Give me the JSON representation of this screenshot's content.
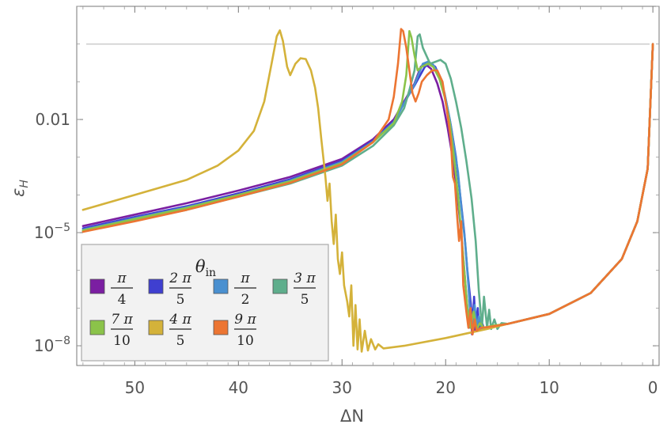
{
  "chart_data": {
    "type": "line",
    "xlabel": "ΔN",
    "ylabel": "ε_H",
    "ylabel_parts": {
      "main": "ε",
      "sub": "H"
    },
    "x_axis": {
      "range": [
        55.6,
        -0.6
      ],
      "reversed": true,
      "ticks": [
        50,
        40,
        30,
        20,
        10,
        0
      ],
      "tick_labels": [
        "50",
        "40",
        "30",
        "20",
        "10",
        "0"
      ]
    },
    "y_axis": {
      "scale": "log",
      "range": [
        3e-09,
        10.0
      ],
      "ticks": [
        0.01,
        1e-05,
        1e-08
      ],
      "tick_labels": [
        {
          "base": "0.01",
          "exp": ""
        },
        {
          "base": "10",
          "exp": "−5"
        },
        {
          "base": "10",
          "exp": "−8"
        }
      ]
    },
    "reference_line": {
      "y": 1.0,
      "color": "#c8c8c8"
    },
    "legend": {
      "title": {
        "main": "θ",
        "sub": "in"
      },
      "placement": "bottom-left",
      "entries": [
        {
          "num": "π",
          "den": "4"
        },
        {
          "num": "2 π",
          "den": "5"
        },
        {
          "num": "π",
          "den": "2"
        },
        {
          "num": "3 π",
          "den": "5"
        },
        {
          "num": "7 π",
          "den": "10"
        },
        {
          "num": "4 π",
          "den": "5"
        },
        {
          "num": "9 π",
          "den": "10"
        }
      ]
    },
    "series": [
      {
        "color": "#7b1fa2",
        "points": [
          [
            55,
            1.5e-05
          ],
          [
            50,
            3e-05
          ],
          [
            45,
            6e-05
          ],
          [
            40,
            0.00013
          ],
          [
            35,
            0.0003
          ],
          [
            30,
            0.0009
          ],
          [
            27,
            0.003
          ],
          [
            25,
            0.01
          ],
          [
            24,
            0.03
          ],
          [
            23,
            0.09
          ],
          [
            22.4,
            0.25
          ],
          [
            22,
            0.3
          ],
          [
            21.4,
            0.22
          ],
          [
            20.8,
            0.09
          ],
          [
            20.3,
            0.03
          ],
          [
            19.8,
            0.006
          ],
          [
            19.3,
            0.0009
          ],
          [
            18.9,
            0.00012
          ],
          [
            18.5,
            1e-05
          ],
          [
            18.2,
            1e-06
          ],
          [
            17.9,
            1e-07
          ],
          [
            17.75,
            3e-08
          ],
          [
            17.6,
            1.5e-07
          ],
          [
            17.45,
            2e-08
          ],
          [
            17.3,
            8e-08
          ],
          [
            17.15,
            2.5e-08
          ],
          [
            17.0,
            4e-08
          ],
          [
            16.6,
            2.8e-08
          ],
          [
            16,
            3.1e-08
          ],
          [
            14,
            3.8e-08
          ],
          [
            10,
            7e-08
          ],
          [
            6,
            2.5e-07
          ],
          [
            3,
            2e-06
          ],
          [
            1.5,
            2e-05
          ],
          [
            0.5,
            0.0005
          ],
          [
            0,
            1
          ]
        ]
      },
      {
        "color": "#3f3fd0",
        "points": [
          [
            55,
            1.3e-05
          ],
          [
            50,
            2.6e-05
          ],
          [
            45,
            5e-05
          ],
          [
            40,
            0.00011
          ],
          [
            35,
            0.00026
          ],
          [
            30,
            0.0008
          ],
          [
            27,
            0.0028
          ],
          [
            25,
            0.009
          ],
          [
            24,
            0.028
          ],
          [
            23,
            0.08
          ],
          [
            22,
            0.25
          ],
          [
            21.5,
            0.31
          ],
          [
            21,
            0.25
          ],
          [
            20.5,
            0.12
          ],
          [
            20,
            0.035
          ],
          [
            19.5,
            0.007
          ],
          [
            19,
            0.001
          ],
          [
            18.6,
            0.0001
          ],
          [
            18.2,
            1e-05
          ],
          [
            17.9,
            1e-06
          ],
          [
            17.6,
            1.5e-07
          ],
          [
            17.4,
            4e-08
          ],
          [
            17.25,
            2e-07
          ],
          [
            17.1,
            3e-08
          ],
          [
            16.9,
            1e-07
          ],
          [
            16.75,
            2.7e-08
          ],
          [
            16.6,
            5e-08
          ],
          [
            16.3,
            2.9e-08
          ],
          [
            16,
            3.1e-08
          ],
          [
            14,
            3.8e-08
          ],
          [
            10,
            7e-08
          ],
          [
            6,
            2.5e-07
          ],
          [
            3,
            2e-06
          ],
          [
            1.5,
            2e-05
          ],
          [
            0.5,
            0.0005
          ],
          [
            0,
            1
          ]
        ]
      },
      {
        "color": "#4a90d0",
        "points": [
          [
            55,
            1.2e-05
          ],
          [
            50,
            2.4e-05
          ],
          [
            45,
            4.7e-05
          ],
          [
            40,
            0.0001
          ],
          [
            35,
            0.00024
          ],
          [
            30,
            0.00075
          ],
          [
            27,
            0.0026
          ],
          [
            25,
            0.0085
          ],
          [
            24,
            0.027
          ],
          [
            23,
            0.085
          ],
          [
            22.2,
            0.3
          ],
          [
            21.7,
            0.34
          ],
          [
            21.2,
            0.28
          ],
          [
            20.6,
            0.14
          ],
          [
            20.1,
            0.05
          ],
          [
            19.6,
            0.01
          ],
          [
            19.2,
            0.002
          ],
          [
            18.8,
            0.0004
          ],
          [
            18.5,
            5e-05
          ],
          [
            18.1,
            5e-06
          ],
          [
            17.8,
            4e-07
          ],
          [
            17.6,
            5e-08
          ],
          [
            17.4,
            3.5e-08
          ],
          [
            17.2,
            1.2e-07
          ],
          [
            17.0,
            3e-08
          ],
          [
            16.8,
            6e-08
          ],
          [
            16.5,
            2.8e-08
          ],
          [
            16.1,
            3.1e-08
          ],
          [
            14,
            3.8e-08
          ],
          [
            10,
            7e-08
          ],
          [
            6,
            2.5e-07
          ],
          [
            3,
            2e-06
          ],
          [
            1.5,
            2e-05
          ],
          [
            0.5,
            0.0005
          ],
          [
            0,
            1
          ]
        ]
      },
      {
        "color": "#5fae8c",
        "points": [
          [
            55,
            1.1e-05
          ],
          [
            50,
            2.1e-05
          ],
          [
            45,
            4e-05
          ],
          [
            40,
            9e-05
          ],
          [
            35,
            0.0002
          ],
          [
            30,
            0.0006
          ],
          [
            27,
            0.002
          ],
          [
            25,
            0.007
          ],
          [
            24,
            0.02
          ],
          [
            23.5,
            0.06
          ],
          [
            23,
            0.2
          ],
          [
            22.7,
            1.6
          ],
          [
            22.5,
            1.8
          ],
          [
            22.2,
            0.8
          ],
          [
            21.5,
            0.3
          ],
          [
            20.5,
            0.38
          ],
          [
            20,
            0.3
          ],
          [
            19.5,
            0.12
          ],
          [
            19,
            0.03
          ],
          [
            18.5,
            0.006
          ],
          [
            18,
            0.0008
          ],
          [
            17.5,
            8e-05
          ],
          [
            17.1,
            6e-06
          ],
          [
            16.8,
            3e-07
          ],
          [
            16.5,
            3e-08
          ],
          [
            16.3,
            2e-07
          ],
          [
            16.0,
            3e-08
          ],
          [
            15.8,
            9e-08
          ],
          [
            15.6,
            2.8e-08
          ],
          [
            15.3,
            5e-08
          ],
          [
            15.0,
            2.8e-08
          ],
          [
            14.6,
            4e-08
          ],
          [
            14,
            3.8e-08
          ],
          [
            10,
            7e-08
          ],
          [
            6,
            2.5e-07
          ],
          [
            3,
            2e-06
          ],
          [
            1.5,
            2e-05
          ],
          [
            0.5,
            0.0005
          ],
          [
            0,
            1
          ]
        ]
      },
      {
        "color": "#8bc34a",
        "points": [
          [
            55,
            1.15e-05
          ],
          [
            50,
            2.3e-05
          ],
          [
            45,
            4.5e-05
          ],
          [
            40,
            0.0001
          ],
          [
            35,
            0.00023
          ],
          [
            30,
            0.0007
          ],
          [
            27,
            0.0025
          ],
          [
            25,
            0.008
          ],
          [
            24.2,
            0.03
          ],
          [
            23.8,
            0.15
          ],
          [
            23.5,
            2.2
          ],
          [
            23.3,
            1.5
          ],
          [
            23,
            0.5
          ],
          [
            22.7,
            0.2
          ],
          [
            22.3,
            0.25
          ],
          [
            21.7,
            0.3
          ],
          [
            21.2,
            0.25
          ],
          [
            20.6,
            0.12
          ],
          [
            20.1,
            0.04
          ],
          [
            19.6,
            0.008
          ],
          [
            19.2,
            0.001
          ],
          [
            18.8,
            0.0001
          ],
          [
            18.5,
            1e-05
          ],
          [
            18.2,
            1e-06
          ],
          [
            17.9,
            1e-07
          ],
          [
            17.6,
            3e-08
          ],
          [
            17.3,
            8e-08
          ],
          [
            17.0,
            2.7e-08
          ],
          [
            16.7,
            4e-08
          ],
          [
            16.3,
            3e-08
          ],
          [
            15.5,
            3.4e-08
          ],
          [
            14,
            3.8e-08
          ],
          [
            10,
            7e-08
          ],
          [
            6,
            2.5e-07
          ],
          [
            3,
            2e-06
          ],
          [
            1.5,
            2e-05
          ],
          [
            0.5,
            0.0005
          ],
          [
            0,
            1
          ]
        ]
      },
      {
        "color": "#d4b23a",
        "points": [
          [
            55,
            4e-05
          ],
          [
            50,
            0.0001
          ],
          [
            45,
            0.00025
          ],
          [
            42,
            0.0006
          ],
          [
            40,
            0.0015
          ],
          [
            38.5,
            0.005
          ],
          [
            37.5,
            0.03
          ],
          [
            36.8,
            0.3
          ],
          [
            36.3,
            1.6
          ],
          [
            36,
            2.3
          ],
          [
            35.7,
            1.2
          ],
          [
            35.3,
            0.25
          ],
          [
            35,
            0.15
          ],
          [
            34.5,
            0.3
          ],
          [
            34,
            0.42
          ],
          [
            33.5,
            0.4
          ],
          [
            33,
            0.2
          ],
          [
            32.6,
            0.07
          ],
          [
            32.3,
            0.02
          ],
          [
            32.0,
            0.003
          ],
          [
            31.6,
            0.0003
          ],
          [
            31.4,
            7e-05
          ],
          [
            31.2,
            0.0002
          ],
          [
            31.0,
            2e-05
          ],
          [
            30.8,
            5e-06
          ],
          [
            30.6,
            3e-05
          ],
          [
            30.4,
            2e-06
          ],
          [
            30.2,
            8e-07
          ],
          [
            30.0,
            3e-06
          ],
          [
            29.8,
            4e-07
          ],
          [
            29.5,
            1.5e-07
          ],
          [
            29.3,
            6e-08
          ],
          [
            29.1,
            4e-07
          ],
          [
            28.9,
            1e-08
          ],
          [
            28.7,
            1.2e-07
          ],
          [
            28.5,
            8e-09
          ],
          [
            28.3,
            5e-08
          ],
          [
            28.1,
            7e-09
          ],
          [
            27.8,
            2.5e-08
          ],
          [
            27.5,
            7.5e-09
          ],
          [
            27.2,
            1.5e-08
          ],
          [
            26.8,
            8e-09
          ],
          [
            26.5,
            1.1e-08
          ],
          [
            26,
            8.5e-09
          ],
          [
            24,
            1e-08
          ],
          [
            20,
            1.6e-08
          ],
          [
            16,
            2.8e-08
          ],
          [
            14,
            3.8e-08
          ],
          [
            10,
            7e-08
          ],
          [
            6,
            2.5e-07
          ],
          [
            3,
            2e-06
          ],
          [
            1.5,
            2e-05
          ],
          [
            0.5,
            0.0005
          ],
          [
            0,
            1
          ]
        ]
      },
      {
        "color": "#ec7532",
        "points": [
          [
            55,
            1.05e-05
          ],
          [
            50,
            2e-05
          ],
          [
            45,
            4e-05
          ],
          [
            40,
            9e-05
          ],
          [
            35,
            0.00021
          ],
          [
            30,
            0.00065
          ],
          [
            27,
            0.0025
          ],
          [
            25.5,
            0.01
          ],
          [
            25,
            0.04
          ],
          [
            24.6,
            0.3
          ],
          [
            24.3,
            2.5
          ],
          [
            24.1,
            2.2
          ],
          [
            23.8,
            0.8
          ],
          [
            23.5,
            0.2
          ],
          [
            23.2,
            0.05
          ],
          [
            22.9,
            0.03
          ],
          [
            22.6,
            0.05
          ],
          [
            22.3,
            0.1
          ],
          [
            21.8,
            0.15
          ],
          [
            21.3,
            0.2
          ],
          [
            20.8,
            0.2
          ],
          [
            20.3,
            0.1
          ],
          [
            19.9,
            0.02
          ],
          [
            19.5,
            0.003
          ],
          [
            19.3,
            0.0003
          ],
          [
            19.1,
            0.0002
          ],
          [
            18.9,
            3e-05
          ],
          [
            18.7,
            6e-06
          ],
          [
            18.5,
            2e-05
          ],
          [
            18.3,
            4e-07
          ],
          [
            18.0,
            8e-08
          ],
          [
            17.8,
            3e-08
          ],
          [
            17.6,
            1e-07
          ],
          [
            17.4,
            2e-08
          ],
          [
            17.2,
            5e-08
          ],
          [
            17.0,
            2.5e-08
          ],
          [
            16.6,
            3e-08
          ],
          [
            16,
            3.1e-08
          ],
          [
            14,
            3.8e-08
          ],
          [
            10,
            7e-08
          ],
          [
            6,
            2.5e-07
          ],
          [
            3,
            2e-06
          ],
          [
            1.5,
            2e-05
          ],
          [
            0.5,
            0.0005
          ],
          [
            0,
            1
          ]
        ]
      }
    ]
  }
}
